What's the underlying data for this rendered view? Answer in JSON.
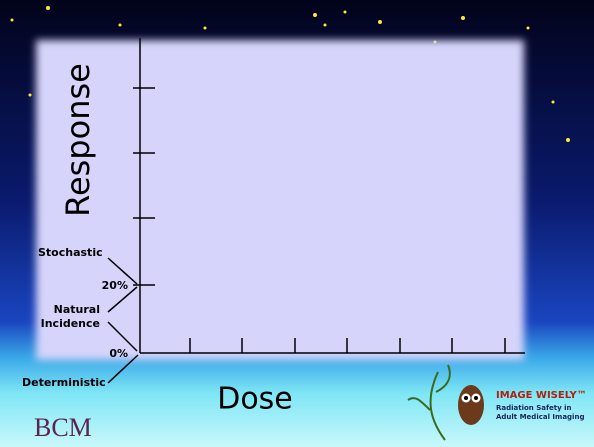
{
  "slide": {
    "y_axis_label": "Response",
    "x_axis_label": "Dose",
    "tick_labels": [
      "20%",
      "0%"
    ],
    "annotations": [
      "Stochastic",
      "Natural",
      "Incidence",
      "Deterministic"
    ],
    "footer": {
      "left_logo": "BCM",
      "right_logo": {
        "title": "IMAGE WISELY™",
        "subtitle": [
          "Radiation Safety in",
          "Adult Medical Imaging"
        ]
      }
    }
  }
}
